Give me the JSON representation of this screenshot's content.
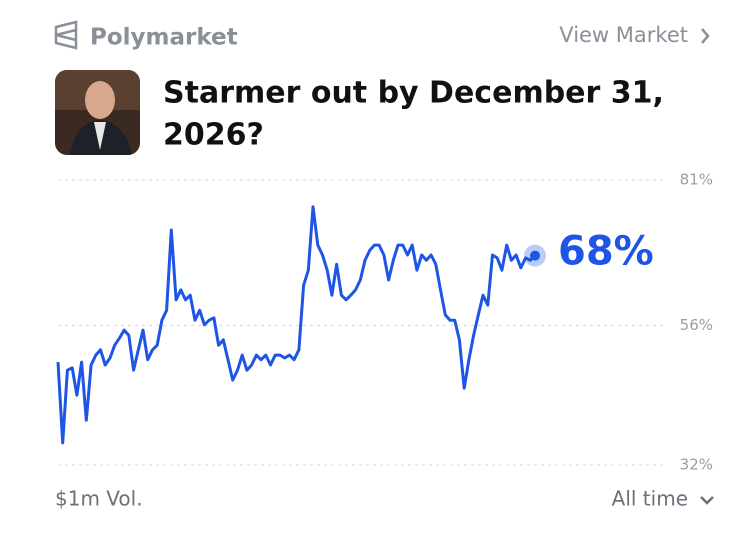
{
  "header": {
    "brand": "Polymarket",
    "link": "View Market",
    "title_lines": [
      "Starmer out by December 31,",
      "2026?"
    ]
  },
  "chart_data": {
    "type": "line",
    "color": "#1f55e6",
    "values": [
      49.7,
      35.8,
      48.3,
      48.7,
      44.0,
      49.7,
      39.7,
      49.2,
      50.9,
      51.8,
      49.2,
      50.4,
      52.6,
      53.8,
      55.2,
      54.3,
      48.3,
      51.8,
      55.2,
      50.1,
      51.8,
      52.6,
      56.9,
      58.6,
      72.4,
      60.4,
      62.1,
      60.4,
      61.2,
      56.9,
      58.6,
      56.1,
      56.9,
      57.3,
      52.6,
      53.5,
      50.1,
      46.6,
      48.3,
      50.9,
      48.3,
      49.2,
      50.9,
      50.1,
      50.9,
      49.2,
      50.9,
      50.9,
      50.4,
      50.9,
      50.1,
      51.8,
      62.9,
      65.5,
      76.4,
      69.8,
      68.1,
      65.5,
      61.2,
      66.5,
      61.2,
      60.4,
      61.2,
      62.1,
      63.8,
      67.2,
      68.9,
      69.8,
      69.8,
      68.1,
      63.8,
      67.2,
      69.8,
      69.8,
      68.1,
      69.8,
      65.5,
      68.1,
      67.2,
      68.1,
      66.5,
      62.1,
      57.8,
      56.9,
      56.9,
      53.5,
      45.2,
      50.1,
      54.3,
      57.8,
      61.2,
      59.5,
      68.1,
      67.6,
      65.5,
      69.8,
      67.2,
      68.1,
      65.9,
      67.6,
      67.2,
      68
    ],
    "value_labels": [
      null,
      null,
      null,
      null,
      null,
      null,
      null,
      null,
      null,
      null,
      null,
      null,
      null,
      null,
      null,
      null,
      null,
      null,
      null,
      null,
      null,
      null,
      null,
      null,
      null,
      null,
      null,
      null,
      null,
      null,
      null,
      null,
      null,
      null,
      null,
      null,
      null,
      null,
      null,
      null,
      null,
      null,
      null,
      null,
      null,
      null,
      null,
      null,
      null,
      null,
      null,
      null,
      null,
      null,
      null,
      null,
      null,
      null,
      null,
      null,
      null,
      null,
      null,
      null,
      null,
      null,
      null,
      null,
      null,
      null,
      null,
      null,
      null,
      null,
      null,
      null,
      null,
      null,
      null,
      null,
      null,
      null,
      null,
      null,
      null,
      null,
      null,
      null,
      null,
      null,
      null,
      null,
      null,
      null,
      null,
      null,
      null,
      null,
      null,
      null,
      null,
      "68%"
    ],
    "ylim": [
      32,
      81
    ],
    "yticks": [
      {
        "value": 32,
        "label": "32%"
      },
      {
        "value": 56,
        "label": "56%"
      },
      {
        "value": 81,
        "label": "81%"
      }
    ],
    "grid": true
  },
  "footer": {
    "volume": "$1m Vol.",
    "range": "All time"
  }
}
